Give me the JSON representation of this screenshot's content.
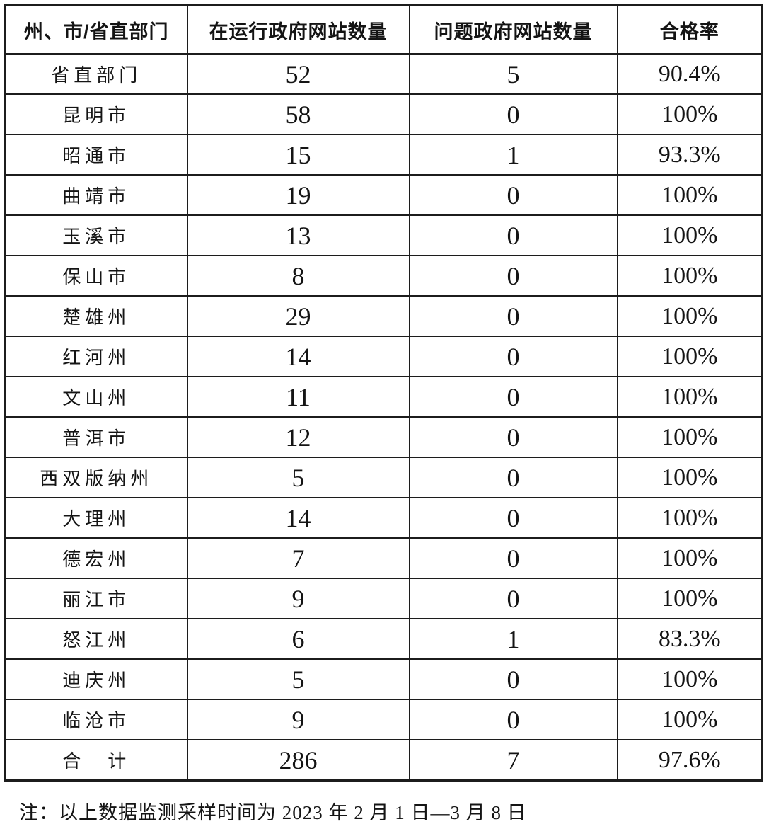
{
  "table": {
    "columns": [
      "州、市/省直部门",
      "在运行政府网站数量",
      "问题政府网站数量",
      "合格率"
    ],
    "rows": [
      {
        "cells": [
          "省直部门",
          "52",
          "5",
          "90.4%"
        ],
        "is_total": false
      },
      {
        "cells": [
          "昆明市",
          "58",
          "0",
          "100%"
        ],
        "is_total": false
      },
      {
        "cells": [
          "昭通市",
          "15",
          "1",
          "93.3%"
        ],
        "is_total": false
      },
      {
        "cells": [
          "曲靖市",
          "19",
          "0",
          "100%"
        ],
        "is_total": false
      },
      {
        "cells": [
          "玉溪市",
          "13",
          "0",
          "100%"
        ],
        "is_total": false
      },
      {
        "cells": [
          "保山市",
          "8",
          "0",
          "100%"
        ],
        "is_total": false
      },
      {
        "cells": [
          "楚雄州",
          "29",
          "0",
          "100%"
        ],
        "is_total": false
      },
      {
        "cells": [
          "红河州",
          "14",
          "0",
          "100%"
        ],
        "is_total": false
      },
      {
        "cells": [
          "文山州",
          "11",
          "0",
          "100%"
        ],
        "is_total": false
      },
      {
        "cells": [
          "普洱市",
          "12",
          "0",
          "100%"
        ],
        "is_total": false
      },
      {
        "cells": [
          "西双版纳州",
          "5",
          "0",
          "100%"
        ],
        "is_total": false
      },
      {
        "cells": [
          "大理州",
          "14",
          "0",
          "100%"
        ],
        "is_total": false
      },
      {
        "cells": [
          "德宏州",
          "7",
          "0",
          "100%"
        ],
        "is_total": false
      },
      {
        "cells": [
          "丽江市",
          "9",
          "0",
          "100%"
        ],
        "is_total": false
      },
      {
        "cells": [
          "怒江州",
          "6",
          "1",
          "83.3%"
        ],
        "is_total": false
      },
      {
        "cells": [
          "迪庆州",
          "5",
          "0",
          "100%"
        ],
        "is_total": false
      },
      {
        "cells": [
          "临沧市",
          "9",
          "0",
          "100%"
        ],
        "is_total": false
      },
      {
        "cells": [
          "合　计",
          "286",
          "7",
          "97.6%"
        ],
        "is_total": true
      }
    ]
  },
  "note": "注：以上数据监测采样时间为 2023 年 2 月 1 日—3 月 8 日",
  "colors": {
    "border": "#1c1c1c",
    "text": "#141414",
    "background": "#ffffff"
  }
}
